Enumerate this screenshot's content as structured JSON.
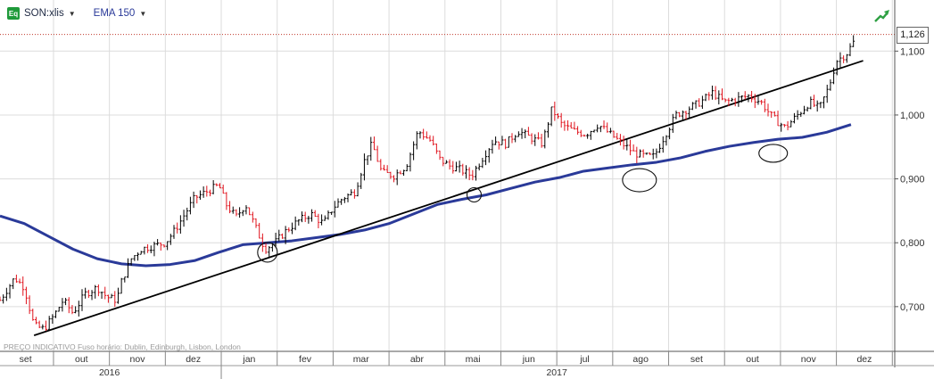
{
  "header": {
    "symbol": "SON:xlis",
    "indicator": "EMA 150",
    "symbol_icon": "equity-icon",
    "dropdown_icon": "caret-down-icon"
  },
  "footnote": "PREÇO INDICATIVO   Fuso horário: Dublin, Edinburgh, Lisbon, London",
  "last_price_label": "1,126",
  "colors": {
    "up_candle": "#000000",
    "down_candle": "#e0141e",
    "ema": "#2a3a99",
    "trendline": "#000000",
    "price_line": "#c0392b",
    "grid": "#dcdcdc"
  },
  "chart_data": {
    "type": "line",
    "subtype": "ohlc-bars",
    "y_scale": "linear",
    "ylim": [
      0.63,
      1.18
    ],
    "y_ticks": [
      0.7,
      0.8,
      0.9,
      1.0,
      1.1
    ],
    "y_tick_labels": [
      "0,700",
      "0,800",
      "0,900",
      "1,000",
      "1,100"
    ],
    "x_months": [
      "set",
      "out",
      "nov",
      "dez",
      "jan",
      "fev",
      "mar",
      "abr",
      "mai",
      "jun",
      "jul",
      "ago",
      "set",
      "out",
      "nov",
      "dez"
    ],
    "x_years": [
      "2016",
      "2017"
    ],
    "last_close": 1.126,
    "grid": true,
    "price_points": [
      {
        "t": 0.0,
        "v": 0.71
      },
      {
        "t": 0.6,
        "v": 0.745
      },
      {
        "t": 1.0,
        "v": 0.73
      },
      {
        "t": 1.4,
        "v": 0.67
      },
      {
        "t": 1.8,
        "v": 0.665
      },
      {
        "t": 2.2,
        "v": 0.685
      },
      {
        "t": 2.6,
        "v": 0.71
      },
      {
        "t": 3.0,
        "v": 0.69
      },
      {
        "t": 3.5,
        "v": 0.72
      },
      {
        "t": 4.0,
        "v": 0.73
      },
      {
        "t": 4.4,
        "v": 0.715
      },
      {
        "t": 4.8,
        "v": 0.71
      },
      {
        "t": 5.0,
        "v": 0.74
      },
      {
        "t": 5.4,
        "v": 0.775
      },
      {
        "t": 5.8,
        "v": 0.79
      },
      {
        "t": 6.3,
        "v": 0.795
      },
      {
        "t": 6.8,
        "v": 0.8
      },
      {
        "t": 7.2,
        "v": 0.82
      },
      {
        "t": 7.6,
        "v": 0.845
      },
      {
        "t": 8.0,
        "v": 0.87
      },
      {
        "t": 8.5,
        "v": 0.88
      },
      {
        "t": 9.0,
        "v": 0.89
      },
      {
        "t": 9.3,
        "v": 0.86
      },
      {
        "t": 9.7,
        "v": 0.84
      },
      {
        "t": 10.1,
        "v": 0.86
      },
      {
        "t": 10.5,
        "v": 0.825
      },
      {
        "t": 10.9,
        "v": 0.79
      },
      {
        "t": 11.3,
        "v": 0.8
      },
      {
        "t": 11.8,
        "v": 0.82
      },
      {
        "t": 12.3,
        "v": 0.835
      },
      {
        "t": 12.8,
        "v": 0.845
      },
      {
        "t": 13.3,
        "v": 0.83
      },
      {
        "t": 13.7,
        "v": 0.855
      },
      {
        "t": 14.1,
        "v": 0.87
      },
      {
        "t": 14.6,
        "v": 0.88
      },
      {
        "t": 15.0,
        "v": 0.93
      },
      {
        "t": 15.3,
        "v": 0.955
      },
      {
        "t": 15.7,
        "v": 0.91
      },
      {
        "t": 16.2,
        "v": 0.905
      },
      {
        "t": 16.7,
        "v": 0.92
      },
      {
        "t": 17.2,
        "v": 0.975
      },
      {
        "t": 17.7,
        "v": 0.96
      },
      {
        "t": 18.1,
        "v": 0.93
      },
      {
        "t": 18.5,
        "v": 0.92
      },
      {
        "t": 18.9,
        "v": 0.915
      },
      {
        "t": 19.4,
        "v": 0.905
      },
      {
        "t": 19.8,
        "v": 0.93
      },
      {
        "t": 20.3,
        "v": 0.96
      },
      {
        "t": 20.8,
        "v": 0.955
      },
      {
        "t": 21.3,
        "v": 0.975
      },
      {
        "t": 21.8,
        "v": 0.965
      },
      {
        "t": 22.3,
        "v": 0.955
      },
      {
        "t": 22.7,
        "v": 1.01
      },
      {
        "t": 23.1,
        "v": 0.985
      },
      {
        "t": 23.6,
        "v": 0.975
      },
      {
        "t": 24.1,
        "v": 0.97
      },
      {
        "t": 24.6,
        "v": 0.985
      },
      {
        "t": 25.1,
        "v": 0.97
      },
      {
        "t": 25.6,
        "v": 0.955
      },
      {
        "t": 26.1,
        "v": 0.94
      },
      {
        "t": 26.6,
        "v": 0.935
      },
      {
        "t": 26.9,
        "v": 0.935
      },
      {
        "t": 27.3,
        "v": 0.965
      },
      {
        "t": 27.8,
        "v": 1.0
      },
      {
        "t": 28.3,
        "v": 1.01
      },
      {
        "t": 28.8,
        "v": 1.02
      },
      {
        "t": 29.3,
        "v": 1.035
      },
      {
        "t": 29.8,
        "v": 1.02
      },
      {
        "t": 30.3,
        "v": 1.025
      },
      {
        "t": 30.8,
        "v": 1.03
      },
      {
        "t": 31.3,
        "v": 1.02
      },
      {
        "t": 31.8,
        "v": 0.995
      },
      {
        "t": 32.3,
        "v": 0.98
      },
      {
        "t": 32.8,
        "v": 1.0
      },
      {
        "t": 33.3,
        "v": 1.02
      },
      {
        "t": 33.7,
        "v": 1.01
      },
      {
        "t": 34.1,
        "v": 1.045
      },
      {
        "t": 34.4,
        "v": 1.085
      },
      {
        "t": 34.8,
        "v": 1.095
      },
      {
        "t": 35.2,
        "v": 1.12
      }
    ],
    "ema_points": [
      {
        "t": 0.0,
        "v": 0.842
      },
      {
        "t": 1.0,
        "v": 0.83
      },
      {
        "t": 2.0,
        "v": 0.81
      },
      {
        "t": 3.0,
        "v": 0.79
      },
      {
        "t": 4.0,
        "v": 0.775
      },
      {
        "t": 5.0,
        "v": 0.767
      },
      {
        "t": 6.0,
        "v": 0.764
      },
      {
        "t": 7.0,
        "v": 0.766
      },
      {
        "t": 8.0,
        "v": 0.772
      },
      {
        "t": 9.0,
        "v": 0.785
      },
      {
        "t": 10.0,
        "v": 0.797
      },
      {
        "t": 11.0,
        "v": 0.8
      },
      {
        "t": 12.0,
        "v": 0.803
      },
      {
        "t": 13.0,
        "v": 0.808
      },
      {
        "t": 14.0,
        "v": 0.813
      },
      {
        "t": 15.0,
        "v": 0.82
      },
      {
        "t": 16.0,
        "v": 0.83
      },
      {
        "t": 17.0,
        "v": 0.845
      },
      {
        "t": 18.0,
        "v": 0.86
      },
      {
        "t": 19.0,
        "v": 0.868
      },
      {
        "t": 20.0,
        "v": 0.875
      },
      {
        "t": 21.0,
        "v": 0.885
      },
      {
        "t": 22.0,
        "v": 0.895
      },
      {
        "t": 23.0,
        "v": 0.902
      },
      {
        "t": 24.0,
        "v": 0.912
      },
      {
        "t": 25.0,
        "v": 0.917
      },
      {
        "t": 26.0,
        "v": 0.922
      },
      {
        "t": 27.0,
        "v": 0.926
      },
      {
        "t": 28.0,
        "v": 0.933
      },
      {
        "t": 29.0,
        "v": 0.943
      },
      {
        "t": 30.0,
        "v": 0.951
      },
      {
        "t": 31.0,
        "v": 0.957
      },
      {
        "t": 32.0,
        "v": 0.962
      },
      {
        "t": 33.0,
        "v": 0.965
      },
      {
        "t": 34.0,
        "v": 0.973
      },
      {
        "t": 35.0,
        "v": 0.985
      }
    ],
    "trendline": [
      {
        "t": 1.4,
        "v": 0.655
      },
      {
        "t": 35.5,
        "v": 1.085
      }
    ],
    "circled_lows": [
      {
        "t": 11.0,
        "v": 0.785,
        "rx": 11,
        "ry": 11
      },
      {
        "t": 19.5,
        "v": 0.875,
        "rx": 8,
        "ry": 8
      },
      {
        "t": 26.3,
        "v": 0.898,
        "rx": 19,
        "ry": 13
      },
      {
        "t": 31.8,
        "v": 0.94,
        "rx": 16,
        "ry": 10
      }
    ]
  }
}
